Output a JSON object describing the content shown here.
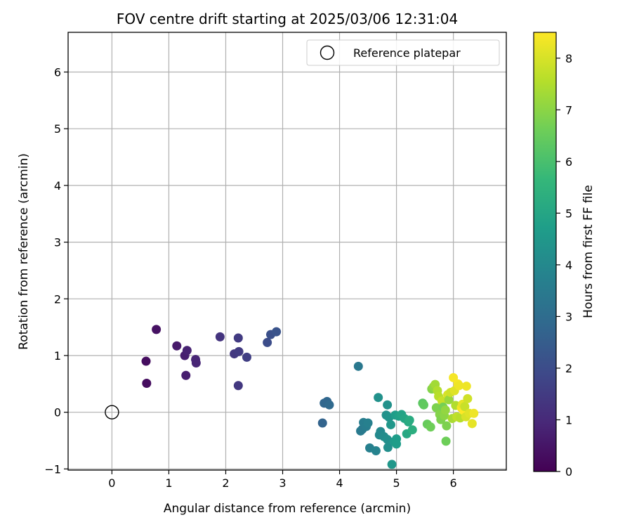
{
  "chart_data": {
    "type": "scatter",
    "title": "FOV centre drift starting at 2025/03/06 12:31:04",
    "xlabel": "Angular distance from reference (arcmin)",
    "ylabel": "Rotation from reference (arcmin)",
    "xlim": [
      -0.77,
      6.93
    ],
    "ylim": [
      -1.02,
      6.7
    ],
    "xticks": [
      0,
      1,
      2,
      3,
      4,
      5,
      6
    ],
    "yticks": [
      -1,
      0,
      1,
      2,
      3,
      4,
      5,
      6
    ],
    "grid": true,
    "legend": {
      "placement": "top-right",
      "entries": [
        {
          "label": "Reference platepar",
          "marker": "open-circle"
        }
      ]
    },
    "reference_point": {
      "x": 0,
      "y": 0
    },
    "colorbar": {
      "label": "Hours from first FF file",
      "range": [
        0,
        8.5
      ],
      "ticks": [
        0,
        1,
        2,
        3,
        4,
        5,
        6,
        7,
        8
      ],
      "colormap": "viridis",
      "placement": "right"
    },
    "points": [
      {
        "x": 0.6,
        "y": 0.9,
        "c": 0.3
      },
      {
        "x": 0.61,
        "y": 0.51,
        "c": 0.3
      },
      {
        "x": 0.78,
        "y": 1.46,
        "c": 0.4
      },
      {
        "x": 1.14,
        "y": 1.17,
        "c": 0.6
      },
      {
        "x": 1.28,
        "y": 1.0,
        "c": 0.7
      },
      {
        "x": 1.32,
        "y": 1.09,
        "c": 0.8
      },
      {
        "x": 1.3,
        "y": 0.65,
        "c": 0.7
      },
      {
        "x": 1.47,
        "y": 0.93,
        "c": 0.9
      },
      {
        "x": 1.48,
        "y": 0.87,
        "c": 0.9
      },
      {
        "x": 1.9,
        "y": 1.33,
        "c": 1.3
      },
      {
        "x": 2.15,
        "y": 1.03,
        "c": 1.4
      },
      {
        "x": 2.22,
        "y": 1.31,
        "c": 1.5
      },
      {
        "x": 2.23,
        "y": 1.07,
        "c": 1.5
      },
      {
        "x": 2.22,
        "y": 0.47,
        "c": 1.4
      },
      {
        "x": 2.37,
        "y": 0.97,
        "c": 1.6
      },
      {
        "x": 2.73,
        "y": 1.23,
        "c": 2.0
      },
      {
        "x": 2.79,
        "y": 1.37,
        "c": 2.1
      },
      {
        "x": 2.89,
        "y": 1.42,
        "c": 2.2
      },
      {
        "x": 3.7,
        "y": -0.19,
        "c": 2.7
      },
      {
        "x": 3.73,
        "y": 0.16,
        "c": 2.8
      },
      {
        "x": 3.78,
        "y": 0.19,
        "c": 2.8
      },
      {
        "x": 3.82,
        "y": 0.13,
        "c": 2.9
      },
      {
        "x": 4.33,
        "y": 0.81,
        "c": 3.4
      },
      {
        "x": 4.37,
        "y": -0.33,
        "c": 3.5
      },
      {
        "x": 4.4,
        "y": -0.3,
        "c": 3.5
      },
      {
        "x": 4.42,
        "y": -0.18,
        "c": 3.6
      },
      {
        "x": 4.47,
        "y": -0.25,
        "c": 3.6
      },
      {
        "x": 4.5,
        "y": -0.19,
        "c": 3.7
      },
      {
        "x": 4.53,
        "y": -0.63,
        "c": 3.7
      },
      {
        "x": 4.64,
        "y": -0.68,
        "c": 3.8
      },
      {
        "x": 4.68,
        "y": 0.26,
        "c": 4.3
      },
      {
        "x": 4.7,
        "y": -0.4,
        "c": 4.0
      },
      {
        "x": 4.72,
        "y": -0.34,
        "c": 4.0
      },
      {
        "x": 4.78,
        "y": -0.43,
        "c": 4.1
      },
      {
        "x": 4.82,
        "y": -0.05,
        "c": 4.3
      },
      {
        "x": 4.84,
        "y": 0.13,
        "c": 4.3
      },
      {
        "x": 4.84,
        "y": -0.48,
        "c": 4.2
      },
      {
        "x": 4.85,
        "y": -0.62,
        "c": 4.2
      },
      {
        "x": 4.87,
        "y": -0.09,
        "c": 4.4
      },
      {
        "x": 4.9,
        "y": -0.22,
        "c": 4.5
      },
      {
        "x": 4.92,
        "y": -0.92,
        "c": 4.5
      },
      {
        "x": 4.96,
        "y": -0.52,
        "c": 4.6
      },
      {
        "x": 4.98,
        "y": -0.05,
        "c": 4.7
      },
      {
        "x": 5.0,
        "y": -0.47,
        "c": 4.7
      },
      {
        "x": 5.0,
        "y": -0.56,
        "c": 4.7
      },
      {
        "x": 5.04,
        "y": -0.07,
        "c": 4.8
      },
      {
        "x": 5.09,
        "y": -0.04,
        "c": 4.9
      },
      {
        "x": 5.14,
        "y": -0.11,
        "c": 5.0
      },
      {
        "x": 5.18,
        "y": -0.38,
        "c": 5.1
      },
      {
        "x": 5.21,
        "y": -0.17,
        "c": 5.1
      },
      {
        "x": 5.23,
        "y": -0.14,
        "c": 5.2
      },
      {
        "x": 5.28,
        "y": -0.31,
        "c": 5.3
      },
      {
        "x": 5.46,
        "y": 0.16,
        "c": 6.3
      },
      {
        "x": 5.48,
        "y": 0.13,
        "c": 6.4
      },
      {
        "x": 5.54,
        "y": -0.21,
        "c": 6.5
      },
      {
        "x": 5.6,
        "y": -0.26,
        "c": 6.6
      },
      {
        "x": 5.62,
        "y": 0.41,
        "c": 6.9
      },
      {
        "x": 5.65,
        "y": 0.45,
        "c": 7.1
      },
      {
        "x": 5.68,
        "y": 0.49,
        "c": 7.3
      },
      {
        "x": 5.7,
        "y": 0.08,
        "c": 6.8
      },
      {
        "x": 5.72,
        "y": 0.38,
        "c": 7.5
      },
      {
        "x": 5.74,
        "y": 0.28,
        "c": 7.6
      },
      {
        "x": 5.76,
        "y": -0.04,
        "c": 6.9
      },
      {
        "x": 5.78,
        "y": -0.13,
        "c": 6.8
      },
      {
        "x": 5.8,
        "y": 0.2,
        "c": 7.8
      },
      {
        "x": 5.82,
        "y": 0.09,
        "c": 6.7
      },
      {
        "x": 5.84,
        "y": -0.06,
        "c": 7.0
      },
      {
        "x": 5.86,
        "y": 0.04,
        "c": 7.1
      },
      {
        "x": 5.87,
        "y": -0.51,
        "c": 6.6
      },
      {
        "x": 5.88,
        "y": -0.24,
        "c": 6.8
      },
      {
        "x": 5.9,
        "y": 0.31,
        "c": 8.0
      },
      {
        "x": 5.92,
        "y": 0.22,
        "c": 7.2
      },
      {
        "x": 5.95,
        "y": 0.35,
        "c": 7.9
      },
      {
        "x": 5.98,
        "y": -0.11,
        "c": 7.4
      },
      {
        "x": 6.0,
        "y": 0.61,
        "c": 8.4
      },
      {
        "x": 6.02,
        "y": 0.38,
        "c": 8.1
      },
      {
        "x": 6.04,
        "y": 0.12,
        "c": 7.5
      },
      {
        "x": 6.06,
        "y": -0.08,
        "c": 7.7
      },
      {
        "x": 6.08,
        "y": 0.5,
        "c": 8.4
      },
      {
        "x": 6.1,
        "y": 0.47,
        "c": 8.3
      },
      {
        "x": 6.12,
        "y": -0.1,
        "c": 7.6
      },
      {
        "x": 6.14,
        "y": 0.08,
        "c": 8.4
      },
      {
        "x": 6.16,
        "y": 0.14,
        "c": 8.2
      },
      {
        "x": 6.18,
        "y": 0.03,
        "c": 8.5
      },
      {
        "x": 6.2,
        "y": 0.1,
        "c": 7.8
      },
      {
        "x": 6.22,
        "y": -0.08,
        "c": 8.0
      },
      {
        "x": 6.23,
        "y": 0.46,
        "c": 8.3
      },
      {
        "x": 6.25,
        "y": 0.24,
        "c": 7.9
      },
      {
        "x": 6.28,
        "y": -0.02,
        "c": 8.1
      },
      {
        "x": 6.33,
        "y": -0.2,
        "c": 8.2
      },
      {
        "x": 6.36,
        "y": -0.02,
        "c": 8.3
      }
    ]
  }
}
